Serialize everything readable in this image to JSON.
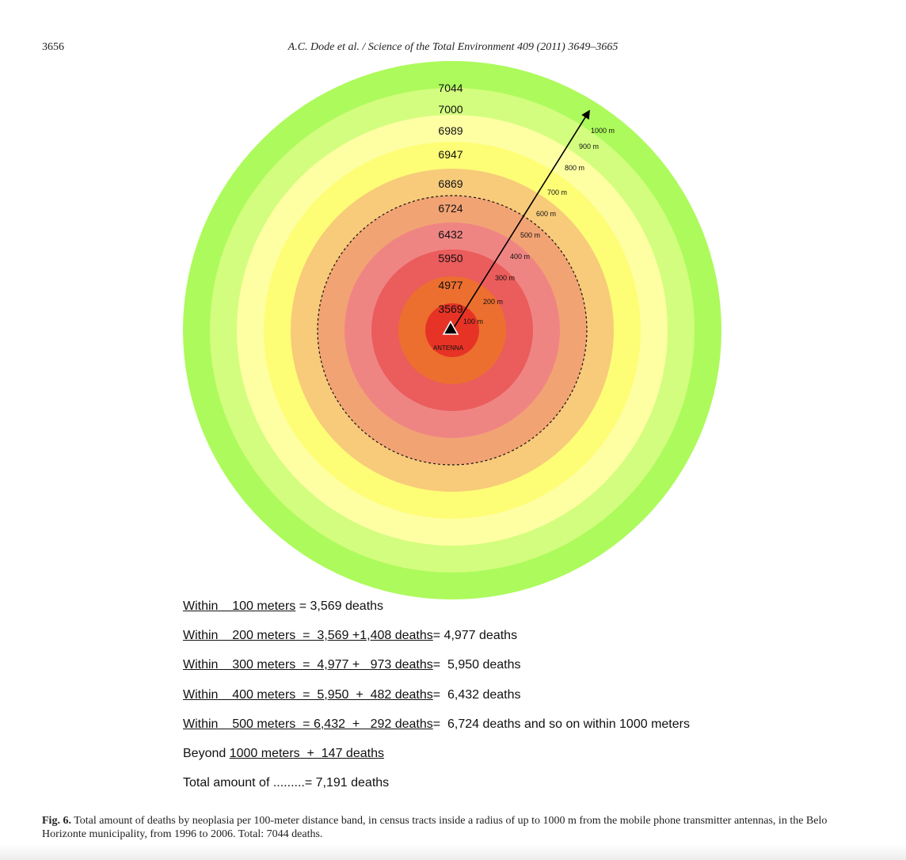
{
  "header": {
    "page_number": "3656",
    "running_title": "A.C. Dode et al. / Science of the Total Environment 409 (2011) 3649–3665"
  },
  "figure": {
    "rings": [
      {
        "distance_m": 1000,
        "label": "7044",
        "color": "#adfa5c"
      },
      {
        "distance_m": 900,
        "label": "7000",
        "color": "#d3fd7e"
      },
      {
        "distance_m": 800,
        "label": "6989",
        "color": "#feffa3"
      },
      {
        "distance_m": 700,
        "label": "6947",
        "color": "#fefd76"
      },
      {
        "distance_m": 600,
        "label": "6869",
        "color": "#f7cb7a"
      },
      {
        "distance_m": 500,
        "label": "6724",
        "color": "#f2a374"
      },
      {
        "distance_m": 400,
        "label": "6432",
        "color": "#ef8583"
      },
      {
        "distance_m": 300,
        "label": "5950",
        "color": "#eb5c5c"
      },
      {
        "distance_m": 200,
        "label": "4977",
        "color": "#ec6f2f"
      },
      {
        "distance_m": 100,
        "label": "3569",
        "color": "#e73325"
      }
    ],
    "distance_labels": [
      "100 m",
      "200 m",
      "300 m",
      "400 m",
      "500 m",
      "600 m",
      "700 m",
      "800 m",
      "900 m",
      "1000 m"
    ],
    "antenna_label": "ANTENNA",
    "dashed_boundary_m": 500
  },
  "equations": [
    [
      {
        "t": "Within    100 meters",
        "u": true
      },
      {
        "t": " = 3,569 deaths",
        "u": false
      }
    ],
    [
      {
        "t": "Within    200 meters  =  3,569 +1,408 deaths",
        "u": true
      },
      {
        "t": "= 4,977 deaths",
        "u": false
      }
    ],
    [
      {
        "t": "Within    300 meters  =  4,977 +   973 deaths",
        "u": true
      },
      {
        "t": "=  5,950 deaths",
        "u": false
      }
    ],
    [
      {
        "t": "Within    400 meters  =  5,950  +  482 deaths",
        "u": true
      },
      {
        "t": "=  6,432 deaths",
        "u": false
      }
    ],
    [
      {
        "t": "Within    500 meters  = 6,432  +   292 deaths",
        "u": true
      },
      {
        "t": "=  6,724 deaths and so on within 1000 meters",
        "u": false
      }
    ],
    [
      {
        "t": "Beyond ",
        "u": false
      },
      {
        "t": "1000 meters  +  147 deaths",
        "u": true
      }
    ],
    [
      {
        "t": "Total amount of .........= 7,191 deaths",
        "u": false
      }
    ]
  ],
  "caption": {
    "label": "Fig. 6.",
    "text": " Total amount of deaths by neoplasia per 100-meter distance band, in census tracts inside a radius of up to 1000 m from the mobile phone transmitter antennas, in the Belo Horizonte municipality, from 1996 to 2006. Total: 7044 deaths."
  }
}
